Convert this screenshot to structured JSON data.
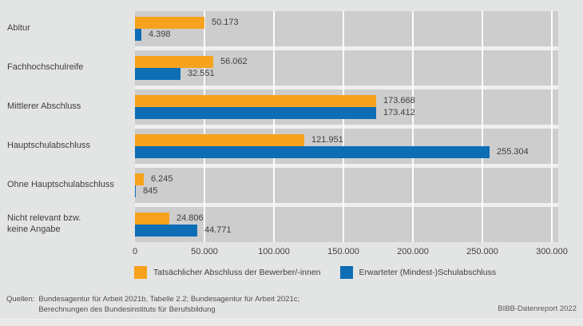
{
  "colors": {
    "background": "#E3E4E4",
    "band": "#CDCDCD",
    "band_gap": "#EFEFEF",
    "grid": "#FDFDFD",
    "orange": "#F7A21D",
    "blue": "#0D6DB5",
    "text": "#3E3E3E"
  },
  "chart_data": {
    "type": "bar",
    "orientation": "horizontal",
    "grid": true,
    "legend_position": "bottom",
    "categories": [
      "Abitur",
      "Fachhochschulreife",
      "Mittlerer Abschluss",
      "Hauptschulabschluss",
      "Ohne Hauptschulabschluss",
      "Nicht relevant bzw.\nkeine Angabe"
    ],
    "series": [
      {
        "name": "Tatsächlicher Abschluss der Bewerber/-innen",
        "color_key": "orange",
        "values": [
          50173,
          56062,
          173668,
          121951,
          6245,
          24806
        ],
        "labels": [
          "50.173",
          "56.062",
          "173.668",
          "121.951",
          "6.245",
          "24.806"
        ]
      },
      {
        "name": "Erwarteter (Mindest-)Schulabschluss",
        "color_key": "blue",
        "values": [
          4398,
          32551,
          173412,
          255304,
          845,
          44771
        ],
        "labels": [
          "4.398",
          "32.551",
          "173.412",
          "255.304",
          "845",
          "44.771"
        ]
      }
    ],
    "xlim": [
      0,
      300000
    ],
    "x_ticks": [
      "0",
      "50.000",
      "100.000",
      "150.000",
      "200.000",
      "250.000",
      "300.000"
    ],
    "x_tick_values": [
      0,
      50000,
      100000,
      150000,
      200000,
      250000,
      300000
    ]
  },
  "footer": {
    "sources_label": "Quellen:",
    "source_line1": "Bundesagentur für Arbeit 2021b, Tabelle 2.2; Bundesagentur für Arbeit 2021c;",
    "source_line2": "Berechnungen des Bundesinstituts für Berufsbildung",
    "report": "BIBB-Datenreport 2022"
  }
}
